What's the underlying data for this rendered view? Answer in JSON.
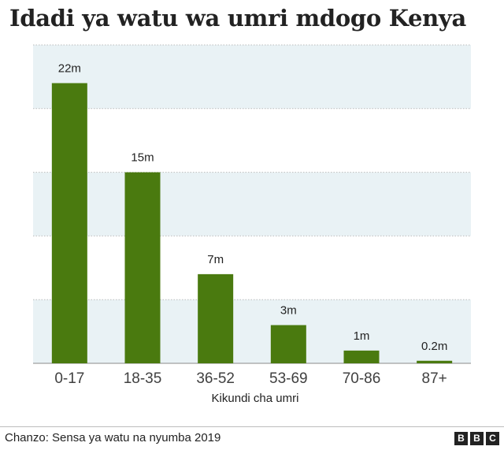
{
  "title": "Idadi ya watu wa umri mdogo Kenya",
  "source": "Chanzo: Sensa ya watu na nyumba 2019",
  "logo": [
    "B",
    "B",
    "C"
  ],
  "colors": {
    "bar": "#4a7a0f",
    "band": "#e9f2f5",
    "text": "#404040"
  },
  "chart_data": {
    "type": "bar",
    "categories": [
      "0-17",
      "18-35",
      "36-52",
      "53-69",
      "70-86",
      "87+"
    ],
    "values": [
      22,
      15,
      7,
      3,
      1,
      0.2
    ],
    "data_labels": [
      "22m",
      "15m",
      "7m",
      "3m",
      "1m",
      "0.2m"
    ],
    "xlabel": "Kikundi cha umri",
    "ylabel": "",
    "ylim": [
      0,
      25
    ],
    "gridlines": [
      5,
      10,
      15,
      20,
      25
    ],
    "grid": true
  }
}
